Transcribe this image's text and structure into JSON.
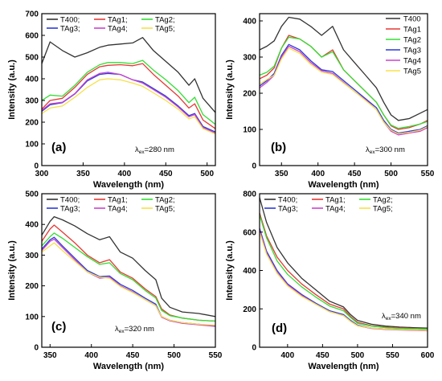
{
  "colors": {
    "T400": "#333333",
    "TAg1": "#e53935",
    "TAg2": "#33dd33",
    "TAg3": "#2b3ad8",
    "TAg4": "#cc44cc",
    "TAg5": "#f7e04a"
  },
  "chart_data": [
    {
      "type": "line",
      "panel": "(a)",
      "excitation": "280 nm",
      "xlabel": "Wavelength (nm)",
      "ylabel": "Intensity (a.u.)",
      "xlim": [
        300,
        510
      ],
      "ylim": [
        0,
        700
      ],
      "xticks": [
        300,
        350,
        400,
        450,
        500
      ],
      "yticks": [
        0,
        100,
        200,
        300,
        400,
        500,
        600,
        700
      ],
      "legend_cols": 3,
      "legend_labels": [
        "T400;",
        "TAg1;",
        "TAg2;",
        "TAg3;",
        "TAg4;",
        "TAg5;"
      ],
      "x": [
        300,
        310,
        325,
        340,
        355,
        370,
        380,
        395,
        410,
        422,
        435,
        450,
        465,
        478,
        485,
        495,
        510
      ],
      "series": [
        {
          "name": "T400",
          "values": [
            470,
            570,
            530,
            500,
            520,
            545,
            555,
            560,
            565,
            590,
            530,
            480,
            430,
            370,
            400,
            310,
            245
          ]
        },
        {
          "name": "TAg1",
          "values": [
            260,
            300,
            310,
            360,
            420,
            455,
            462,
            465,
            460,
            470,
            420,
            370,
            320,
            265,
            285,
            210,
            170
          ]
        },
        {
          "name": "TAg2",
          "values": [
            300,
            325,
            320,
            370,
            430,
            465,
            475,
            475,
            470,
            485,
            440,
            395,
            345,
            290,
            315,
            235,
            190
          ]
        },
        {
          "name": "TAg3",
          "values": [
            250,
            280,
            290,
            330,
            390,
            420,
            425,
            420,
            395,
            385,
            355,
            320,
            275,
            230,
            240,
            180,
            155
          ]
        },
        {
          "name": "TAg4",
          "values": [
            255,
            285,
            292,
            332,
            395,
            425,
            430,
            420,
            395,
            380,
            350,
            315,
            270,
            225,
            235,
            175,
            150
          ]
        },
        {
          "name": "TAg5",
          "values": [
            240,
            265,
            275,
            315,
            360,
            395,
            400,
            395,
            380,
            365,
            335,
            300,
            260,
            215,
            225,
            170,
            145
          ]
        }
      ]
    },
    {
      "type": "line",
      "panel": "(b)",
      "excitation": "300 nm",
      "xlabel": "Wavelength (nm)",
      "ylabel": "Intensity (a.u.)",
      "xlim": [
        320,
        550
      ],
      "ylim": [
        0,
        420
      ],
      "xticks": [
        350,
        400,
        450,
        500,
        550
      ],
      "yticks": [
        0,
        100,
        200,
        300,
        400
      ],
      "legend_cols": 1,
      "legend_labels": [
        "T400",
        "TAg1",
        "TAg2",
        "TAg3",
        "TAg4",
        "TAg5"
      ],
      "x": [
        320,
        330,
        340,
        350,
        360,
        375,
        390,
        405,
        420,
        435,
        450,
        465,
        480,
        490,
        500,
        510,
        525,
        540,
        550
      ],
      "series": [
        {
          "name": "T400",
          "values": [
            320,
            330,
            345,
            385,
            410,
            405,
            385,
            360,
            385,
            320,
            285,
            250,
            215,
            175,
            140,
            125,
            130,
            145,
            155
          ]
        },
        {
          "name": "TAg1",
          "values": [
            240,
            250,
            270,
            325,
            360,
            350,
            330,
            300,
            320,
            265,
            235,
            205,
            175,
            140,
            110,
            100,
            105,
            115,
            125
          ]
        },
        {
          "name": "TAg2",
          "values": [
            250,
            258,
            275,
            325,
            355,
            350,
            330,
            300,
            315,
            265,
            235,
            205,
            175,
            140,
            112,
            103,
            108,
            115,
            122
          ]
        },
        {
          "name": "TAg3",
          "values": [
            220,
            235,
            255,
            305,
            335,
            320,
            290,
            265,
            260,
            235,
            210,
            185,
            160,
            125,
            100,
            90,
            95,
            100,
            110
          ]
        },
        {
          "name": "TAg4",
          "values": [
            215,
            230,
            250,
            300,
            330,
            315,
            285,
            262,
            255,
            230,
            205,
            182,
            155,
            120,
            95,
            85,
            90,
            95,
            105
          ]
        },
        {
          "name": "TAg5",
          "values": [
            225,
            238,
            250,
            295,
            325,
            310,
            280,
            258,
            252,
            228,
            205,
            180,
            155,
            120,
            98,
            88,
            92,
            98,
            108
          ]
        }
      ]
    },
    {
      "type": "line",
      "panel": "(c)",
      "excitation": "320 nm",
      "xlabel": "Wavelength (nm)",
      "ylabel": "Intensity (a.u.)",
      "xlim": [
        340,
        550
      ],
      "ylim": [
        0,
        500
      ],
      "xticks": [
        350,
        400,
        450,
        500,
        550
      ],
      "yticks": [
        0,
        100,
        200,
        300,
        400,
        500
      ],
      "legend_cols": 3,
      "legend_labels": [
        "T400;",
        "TAg1;",
        "TAg2;",
        "TAg3;",
        "TAg4;",
        "TAg5;"
      ],
      "x": [
        340,
        350,
        355,
        365,
        380,
        395,
        410,
        422,
        435,
        450,
        465,
        478,
        485,
        495,
        510,
        530,
        550
      ],
      "series": [
        {
          "name": "T400",
          "values": [
            365,
            410,
            425,
            415,
            395,
            370,
            350,
            360,
            310,
            290,
            250,
            220,
            160,
            130,
            115,
            110,
            100
          ]
        },
        {
          "name": "TAg1",
          "values": [
            345,
            385,
            398,
            375,
            340,
            300,
            275,
            285,
            245,
            225,
            190,
            165,
            125,
            105,
            95,
            88,
            85
          ]
        },
        {
          "name": "TAg2",
          "values": [
            330,
            360,
            372,
            355,
            325,
            295,
            270,
            275,
            240,
            220,
            185,
            160,
            120,
            103,
            95,
            88,
            85
          ]
        },
        {
          "name": "TAg3",
          "values": [
            320,
            350,
            358,
            330,
            290,
            250,
            230,
            232,
            205,
            185,
            160,
            140,
            100,
            88,
            80,
            75,
            70
          ]
        },
        {
          "name": "TAg4",
          "values": [
            315,
            345,
            352,
            325,
            285,
            245,
            225,
            228,
            200,
            180,
            155,
            135,
            98,
            86,
            78,
            73,
            68
          ]
        },
        {
          "name": "TAg5",
          "values": [
            310,
            330,
            340,
            315,
            280,
            245,
            228,
            225,
            198,
            178,
            155,
            135,
            100,
            88,
            80,
            75,
            72
          ]
        }
      ]
    },
    {
      "type": "line",
      "panel": "(d)",
      "excitation": "340 nm",
      "xlabel": "Wavelength (nm)",
      "ylabel": "Intensity (a.u.)",
      "xlim": [
        360,
        600
      ],
      "ylim": [
        0,
        800
      ],
      "xticks": [
        400,
        450,
        500,
        550,
        600
      ],
      "yticks": [
        0,
        200,
        400,
        600,
        800
      ],
      "legend_cols": 3,
      "legend_labels": [
        "T400;",
        "TAg1;",
        "TAg2;",
        "TAg3;",
        "TAg4;",
        "TAg5;"
      ],
      "x": [
        360,
        370,
        385,
        400,
        420,
        440,
        460,
        480,
        490,
        500,
        520,
        540,
        560,
        580,
        600
      ],
      "series": [
        {
          "name": "T400",
          "values": [
            780,
            650,
            520,
            440,
            360,
            300,
            240,
            210,
            170,
            140,
            120,
            110,
            105,
            102,
            100
          ]
        },
        {
          "name": "TAg1",
          "values": [
            700,
            580,
            470,
            400,
            330,
            275,
            225,
            200,
            160,
            130,
            112,
            105,
            100,
            98,
            96
          ]
        },
        {
          "name": "TAg2",
          "values": [
            690,
            570,
            450,
            380,
            315,
            262,
            215,
            190,
            155,
            125,
            110,
            102,
            98,
            96,
            95
          ]
        },
        {
          "name": "TAg3",
          "values": [
            620,
            500,
            400,
            330,
            275,
            230,
            190,
            170,
            140,
            115,
            100,
            95,
            92,
            90,
            88
          ]
        },
        {
          "name": "TAg4",
          "values": [
            610,
            490,
            390,
            325,
            270,
            225,
            185,
            165,
            135,
            112,
            98,
            93,
            90,
            88,
            86
          ]
        },
        {
          "name": "TAg5",
          "values": [
            600,
            485,
            385,
            320,
            265,
            225,
            185,
            165,
            135,
            112,
            100,
            95,
            92,
            90,
            88
          ]
        }
      ]
    }
  ]
}
